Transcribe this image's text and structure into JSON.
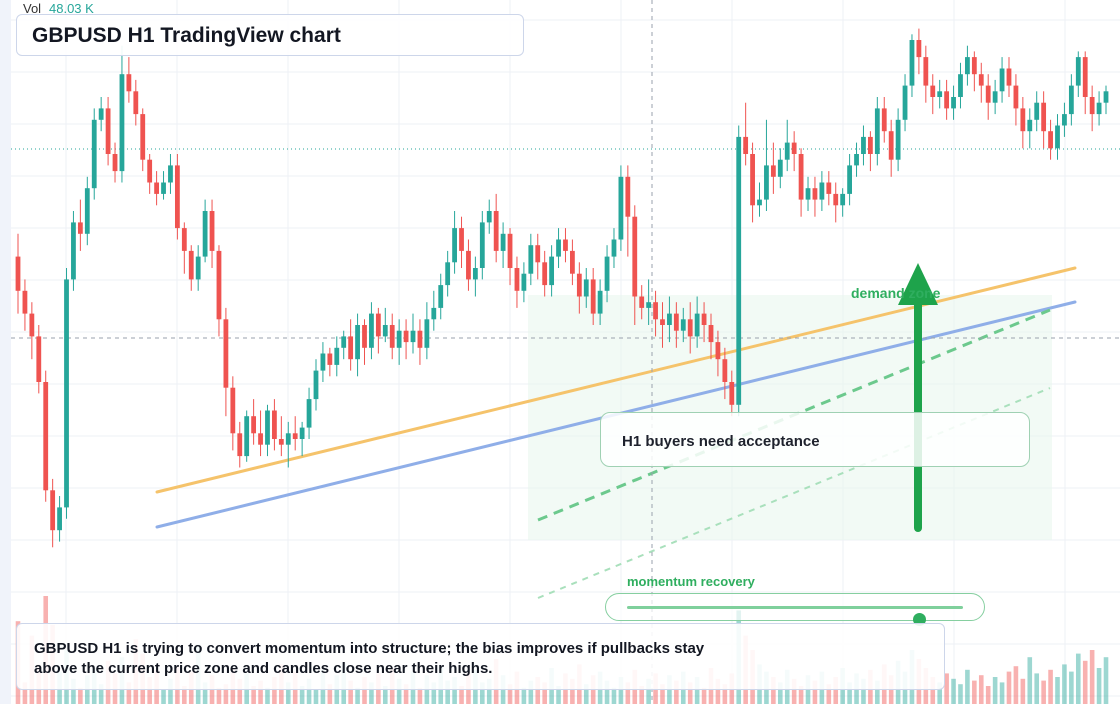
{
  "header": {
    "vol_label": "Vol",
    "vol_value": "48.03 K"
  },
  "title": "GBPUSD H1 TradingView chart",
  "annotations": {
    "note": "H1 buyers need acceptance",
    "zone_label": "demand zone",
    "momentum_label": "momentum recovery",
    "momentum_level": 0.87,
    "summary": "GBPUSD H1 is trying to convert momentum into structure; the bias improves if pullbacks stay above the current price zone and candles close near their highs."
  },
  "colors": {
    "up": "#26a69a",
    "down": "#ef5350",
    "trend_orange": "#f5c36b",
    "trend_blue": "#8faee8",
    "accent_green": "#1ea34b",
    "zone_fill": "#e8f6ec"
  },
  "chart_data": {
    "type": "candlestick",
    "ylim": [
      0,
      100
    ],
    "grid": true,
    "candles": [
      [
        0,
        62,
        56,
        66,
        52
      ],
      [
        1,
        56,
        52,
        58,
        49
      ],
      [
        2,
        52,
        48,
        54,
        44
      ],
      [
        3,
        48,
        40,
        50,
        38
      ],
      [
        4,
        40,
        21,
        42,
        19
      ],
      [
        5,
        21,
        14,
        23,
        11
      ],
      [
        6,
        14,
        18,
        20,
        12
      ],
      [
        7,
        18,
        58,
        60,
        16
      ],
      [
        8,
        58,
        68,
        70,
        56
      ],
      [
        9,
        68,
        66,
        72,
        63
      ],
      [
        10,
        66,
        74,
        76,
        64
      ],
      [
        11,
        74,
        86,
        88,
        72
      ],
      [
        12,
        86,
        88,
        90,
        84
      ],
      [
        13,
        88,
        80,
        90,
        78
      ],
      [
        14,
        80,
        77,
        82,
        75
      ],
      [
        15,
        77,
        94,
        99,
        75
      ],
      [
        16,
        94,
        91,
        97,
        89
      ],
      [
        17,
        91,
        87,
        93,
        85
      ],
      [
        18,
        87,
        79,
        88,
        77
      ],
      [
        19,
        79,
        75,
        80,
        73
      ],
      [
        20,
        75,
        73,
        77,
        71
      ],
      [
        21,
        73,
        75,
        77,
        72
      ],
      [
        22,
        75,
        78,
        80,
        73
      ],
      [
        23,
        78,
        67,
        80,
        65
      ],
      [
        24,
        67,
        63,
        68,
        59
      ],
      [
        25,
        63,
        58,
        64,
        56
      ],
      [
        26,
        58,
        62,
        64,
        56
      ],
      [
        27,
        62,
        70,
        72,
        61
      ],
      [
        28,
        70,
        63,
        72,
        60
      ],
      [
        29,
        63,
        51,
        64,
        48
      ],
      [
        30,
        51,
        39,
        53,
        34
      ],
      [
        31,
        39,
        31,
        41,
        28
      ],
      [
        32,
        31,
        27,
        33,
        25
      ],
      [
        33,
        27,
        34,
        35,
        26
      ],
      [
        34,
        34,
        31,
        37,
        29
      ],
      [
        35,
        31,
        29,
        35,
        27
      ],
      [
        36,
        29,
        35,
        36,
        27
      ],
      [
        37,
        35,
        30,
        37,
        28
      ],
      [
        38,
        30,
        29,
        34,
        27
      ],
      [
        39,
        29,
        31,
        33,
        25
      ],
      [
        40,
        31,
        30,
        34,
        28
      ],
      [
        41,
        30,
        32,
        33,
        27
      ],
      [
        42,
        32,
        37,
        39,
        30
      ],
      [
        43,
        37,
        42,
        44,
        35
      ],
      [
        44,
        42,
        45,
        47,
        40
      ],
      [
        45,
        45,
        43,
        46,
        41
      ],
      [
        46,
        43,
        46,
        48,
        41
      ],
      [
        47,
        46,
        48,
        49,
        44
      ],
      [
        48,
        48,
        44,
        51,
        42
      ],
      [
        49,
        44,
        50,
        52,
        41
      ],
      [
        50,
        50,
        46,
        51,
        43
      ],
      [
        51,
        46,
        52,
        54,
        44
      ],
      [
        52,
        52,
        48,
        53,
        45
      ],
      [
        53,
        48,
        50,
        53,
        47
      ],
      [
        54,
        50,
        46,
        52,
        44
      ],
      [
        55,
        46,
        49,
        51,
        43
      ],
      [
        56,
        49,
        47,
        51,
        44
      ],
      [
        57,
        47,
        49,
        52,
        45
      ],
      [
        58,
        49,
        46,
        51,
        43
      ],
      [
        59,
        46,
        51,
        54,
        44
      ],
      [
        60,
        51,
        53,
        56,
        49
      ],
      [
        61,
        53,
        57,
        59,
        51
      ],
      [
        62,
        57,
        61,
        63,
        55
      ],
      [
        63,
        61,
        67,
        70,
        59
      ],
      [
        64,
        67,
        63,
        69,
        60
      ],
      [
        65,
        63,
        58,
        65,
        56
      ],
      [
        66,
        58,
        60,
        62,
        55
      ],
      [
        67,
        60,
        68,
        70,
        58
      ],
      [
        68,
        68,
        70,
        72,
        66
      ],
      [
        69,
        70,
        63,
        73,
        61
      ],
      [
        70,
        63,
        66,
        68,
        60
      ],
      [
        71,
        66,
        60,
        67,
        57
      ],
      [
        72,
        60,
        56,
        62,
        53
      ],
      [
        73,
        56,
        59,
        61,
        54
      ],
      [
        74,
        59,
        64,
        66,
        57
      ],
      [
        75,
        64,
        61,
        66,
        58
      ],
      [
        76,
        61,
        57,
        63,
        55
      ],
      [
        77,
        57,
        62,
        64,
        55
      ],
      [
        78,
        62,
        65,
        67,
        60
      ],
      [
        79,
        65,
        63,
        67,
        61
      ],
      [
        80,
        63,
        59,
        65,
        57
      ],
      [
        81,
        59,
        55,
        61,
        52
      ],
      [
        82,
        55,
        58,
        60,
        53
      ],
      [
        83,
        58,
        52,
        60,
        50
      ],
      [
        84,
        52,
        56,
        58,
        50
      ],
      [
        85,
        56,
        62,
        64,
        54
      ],
      [
        86,
        62,
        65,
        67,
        60
      ],
      [
        87,
        65,
        76,
        78,
        63
      ],
      [
        88,
        76,
        69,
        78,
        62
      ],
      [
        89,
        69,
        55,
        71,
        50
      ],
      [
        90,
        55,
        53,
        57,
        51
      ],
      [
        91,
        53,
        54,
        58,
        50
      ],
      [
        92,
        54,
        51,
        56,
        48
      ],
      [
        93,
        51,
        50,
        54,
        46
      ],
      [
        94,
        50,
        52,
        55,
        47
      ],
      [
        95,
        52,
        49,
        54,
        46
      ],
      [
        96,
        49,
        51,
        53,
        47
      ],
      [
        97,
        51,
        48,
        54,
        45
      ],
      [
        98,
        48,
        52,
        55,
        46
      ],
      [
        99,
        52,
        50,
        54,
        47
      ],
      [
        100,
        50,
        47,
        52,
        44
      ],
      [
        101,
        47,
        44,
        49,
        41
      ],
      [
        102,
        44,
        40,
        46,
        37
      ],
      [
        103,
        40,
        36,
        42,
        34
      ],
      [
        104,
        36,
        83,
        85,
        34
      ],
      [
        105,
        83,
        80,
        89,
        78
      ],
      [
        106,
        80,
        71,
        82,
        68
      ],
      [
        107,
        71,
        72,
        75,
        69
      ],
      [
        108,
        72,
        78,
        86,
        70
      ],
      [
        109,
        78,
        76,
        82,
        73
      ],
      [
        110,
        76,
        79,
        81,
        74
      ],
      [
        111,
        79,
        82,
        86,
        77
      ],
      [
        112,
        82,
        80,
        84,
        77
      ],
      [
        113,
        80,
        72,
        81,
        69
      ],
      [
        114,
        72,
        74,
        76,
        70
      ],
      [
        115,
        74,
        72,
        76,
        69
      ],
      [
        116,
        72,
        75,
        77,
        70
      ],
      [
        117,
        75,
        73,
        77,
        71
      ],
      [
        118,
        73,
        71,
        75,
        68
      ],
      [
        119,
        71,
        73,
        74,
        69
      ],
      [
        120,
        73,
        78,
        80,
        71
      ],
      [
        121,
        78,
        80,
        82,
        76
      ],
      [
        122,
        80,
        83,
        85,
        78
      ],
      [
        123,
        83,
        80,
        84,
        77
      ],
      [
        124,
        80,
        88,
        90,
        78
      ],
      [
        125,
        88,
        84,
        90,
        82
      ],
      [
        126,
        84,
        79,
        86,
        76
      ],
      [
        127,
        79,
        86,
        88,
        77
      ],
      [
        128,
        86,
        92,
        94,
        84
      ],
      [
        129,
        92,
        100,
        101,
        90
      ],
      [
        130,
        100,
        97,
        102,
        94
      ],
      [
        131,
        97,
        92,
        99,
        89
      ],
      [
        132,
        92,
        90,
        94,
        87
      ],
      [
        133,
        90,
        91,
        93,
        88
      ],
      [
        134,
        91,
        88,
        93,
        86
      ],
      [
        135,
        88,
        90,
        92,
        86
      ],
      [
        136,
        90,
        94,
        96,
        88
      ],
      [
        137,
        94,
        97,
        99,
        92
      ],
      [
        138,
        97,
        94,
        98,
        91
      ],
      [
        139,
        94,
        92,
        96,
        89
      ],
      [
        140,
        92,
        89,
        94,
        86
      ],
      [
        141,
        89,
        91,
        93,
        87
      ],
      [
        142,
        91,
        95,
        97,
        89
      ],
      [
        143,
        95,
        92,
        97,
        90
      ],
      [
        144,
        92,
        88,
        94,
        85
      ],
      [
        145,
        88,
        84,
        90,
        81
      ],
      [
        146,
        84,
        86,
        88,
        81
      ],
      [
        147,
        86,
        89,
        91,
        84
      ],
      [
        148,
        89,
        84,
        91,
        81
      ],
      [
        149,
        84,
        81,
        86,
        79
      ],
      [
        150,
        81,
        85,
        87,
        79
      ],
      [
        151,
        85,
        87,
        89,
        83
      ],
      [
        152,
        87,
        92,
        94,
        85
      ],
      [
        153,
        92,
        97,
        98,
        90
      ],
      [
        154,
        97,
        90,
        98,
        87
      ],
      [
        155,
        90,
        87,
        92,
        84
      ],
      [
        156,
        87,
        89,
        91,
        85
      ],
      [
        157,
        89,
        91,
        92,
        87
      ]
    ],
    "volume": [
      46,
      12,
      38,
      22,
      60,
      44,
      18,
      30,
      14,
      9,
      16,
      20,
      11,
      24,
      17,
      26,
      12,
      36,
      28,
      15,
      19,
      8,
      14,
      21,
      10,
      18,
      33,
      12,
      16,
      9,
      11,
      20,
      14,
      17,
      10,
      13,
      9,
      15,
      22,
      12,
      18,
      10,
      14,
      8,
      19,
      11,
      16,
      23,
      13,
      9,
      15,
      12,
      17,
      10,
      20,
      14,
      11,
      18,
      9,
      16,
      12,
      21,
      13,
      15,
      10,
      17,
      19,
      12,
      14,
      25,
      16,
      11,
      18,
      9,
      13,
      15,
      12,
      20,
      10,
      17,
      14,
      22,
      11,
      16,
      18,
      13,
      9,
      15,
      12,
      19,
      10,
      14,
      17,
      11,
      16,
      13,
      18,
      12,
      15,
      9,
      20,
      14,
      11,
      17,
      52,
      38,
      30,
      22,
      18,
      15,
      12,
      19,
      14,
      10,
      16,
      13,
      18,
      11,
      15,
      20,
      12,
      17,
      14,
      19,
      13,
      22,
      16,
      24,
      18,
      30,
      25,
      20,
      15,
      12,
      17,
      14,
      11,
      19,
      13,
      16,
      10,
      15,
      12,
      18,
      21,
      14,
      26,
      17,
      13,
      19,
      15,
      22,
      18,
      28,
      24,
      30,
      20,
      26
    ]
  }
}
